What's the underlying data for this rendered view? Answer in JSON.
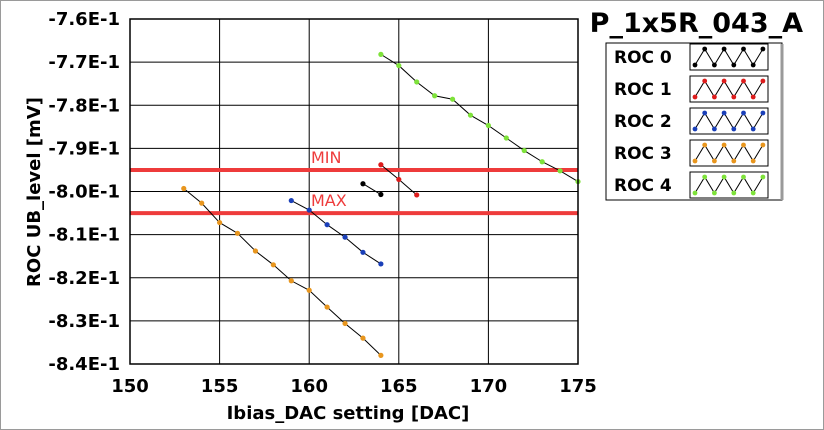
{
  "chart_data": {
    "type": "line",
    "title": "P_1x5R_043_A",
    "xlabel": "Ibias_DAC setting [DAC]",
    "ylabel": "ROC UB_level [mV]",
    "xlim": [
      150,
      175
    ],
    "ylim": [
      -0.84,
      -0.76
    ],
    "xticks": [
      150,
      155,
      160,
      165,
      170,
      175
    ],
    "xtick_labels": [
      "150",
      "155",
      "160",
      "165",
      "170",
      "175"
    ],
    "yticks": [
      -0.76,
      -0.77,
      -0.78,
      -0.79,
      -0.8,
      -0.81,
      -0.82,
      -0.83,
      -0.84
    ],
    "ytick_labels": [
      "-7.6E-1",
      "-7.7E-1",
      "-7.8E-1",
      "-7.9E-1",
      "-8.0E-1",
      "-8.1E-1",
      "-8.2E-1",
      "-8.3E-1",
      "-8.4E-1"
    ],
    "grid": true,
    "legend_position": "right",
    "reference_lines": [
      {
        "label": "MIN",
        "y": -0.795,
        "color": "#ee3b3b"
      },
      {
        "label": "MAX",
        "y": -0.805,
        "color": "#ee3b3b"
      }
    ],
    "series": [
      {
        "name": "ROC 0",
        "color": "#000000",
        "x": [
          163,
          164
        ],
        "y": [
          -0.7982,
          -0.8007
        ]
      },
      {
        "name": "ROC 1",
        "color": "#dd1c1c",
        "x": [
          164,
          165,
          166
        ],
        "y": [
          -0.7938,
          -0.7972,
          -0.8008
        ]
      },
      {
        "name": "ROC 2",
        "color": "#1a3fb8",
        "x": [
          159,
          160,
          161,
          162,
          163,
          164
        ],
        "y": [
          -0.8021,
          -0.8043,
          -0.8077,
          -0.8106,
          -0.8141,
          -0.8168
        ]
      },
      {
        "name": "ROC 3",
        "color": "#e8961e",
        "x": [
          153,
          154,
          155,
          156,
          157,
          158,
          159,
          160,
          161,
          162,
          163,
          164
        ],
        "y": [
          -0.7993,
          -0.8027,
          -0.8072,
          -0.8097,
          -0.8138,
          -0.817,
          -0.8207,
          -0.8229,
          -0.8268,
          -0.8306,
          -0.834,
          -0.838
        ]
      },
      {
        "name": "ROC 4",
        "color": "#7ee23a",
        "x": [
          164,
          165,
          166,
          167,
          168,
          169,
          170,
          171,
          172,
          173,
          174,
          175
        ],
        "y": [
          -0.7682,
          -0.7708,
          -0.7746,
          -0.7778,
          -0.7786,
          -0.7823,
          -0.7847,
          -0.7876,
          -0.7905,
          -0.7931,
          -0.7952,
          -0.7977
        ]
      }
    ]
  }
}
